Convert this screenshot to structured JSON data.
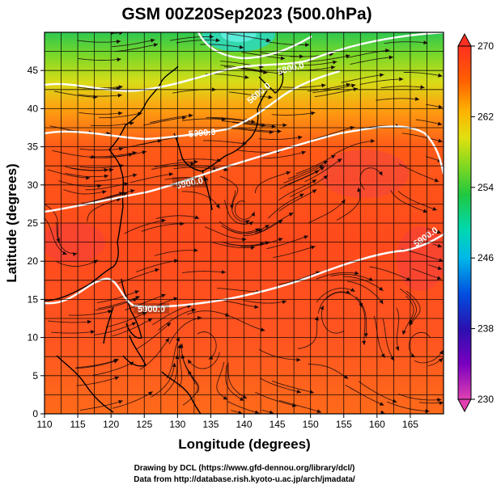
{
  "title": "GSM 00Z20Sep2023 (500.0hPa)",
  "xlabel": "Longitude (degrees)",
  "ylabel": "Latitude  (degrees)",
  "x_ticks": [
    "110",
    "115",
    "120",
    "125",
    "130",
    "135",
    "140",
    "145",
    "150",
    "155",
    "160",
    "165"
  ],
  "y_ticks": [
    "45",
    "40",
    "35",
    "30",
    "25",
    "20",
    "15",
    "10",
    "5",
    "0"
  ],
  "colorbar": {
    "labels": [
      "270",
      "262",
      "254",
      "246",
      "238",
      "230"
    ],
    "min": 230,
    "max": 270,
    "colors": [
      "#e040b0",
      "#7a00c0",
      "#2a10b0",
      "#0060e0",
      "#00b8e8",
      "#00d8b0",
      "#20c840",
      "#80d820",
      "#e0e010",
      "#ffb000",
      "#ff6000",
      "#ff3020"
    ]
  },
  "contour_labels": [
    "5900.0",
    "5900.0",
    "5900.0",
    "5900.0",
    "5800.0",
    "5600.0"
  ],
  "credits": {
    "line1": "Drawing by DCL (https://www.gfd-dennou.org/library/dcl/)",
    "line2": "Data from http://database.rish.kyoto-u.ac.jp/arch/jmadata/"
  },
  "map_data": {
    "extent": {
      "lon": [
        110,
        170
      ],
      "lat": [
        0,
        50
      ]
    },
    "field": "temperature",
    "contour_field": "geopotential height",
    "vector_field": "wind streamlines"
  }
}
